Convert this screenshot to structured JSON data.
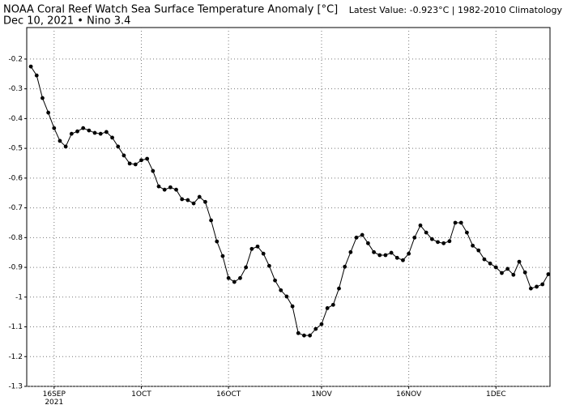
{
  "chart_data": {
    "type": "line",
    "title": "NOAA Coral Reef Watch Sea Surface Temperature Anomaly [°C]",
    "subtitle": "Dec 10, 2021 • Nino 3.4",
    "annotation": "Latest Value: -0.923°C | 1982-2010 Climatology",
    "color": "#000000",
    "grid": true,
    "x": [
      "2021-09-12",
      "2021-09-13",
      "2021-09-14",
      "2021-09-15",
      "2021-09-16",
      "2021-09-17",
      "2021-09-18",
      "2021-09-19",
      "2021-09-20",
      "2021-09-21",
      "2021-09-22",
      "2021-09-23",
      "2021-09-24",
      "2021-09-25",
      "2021-09-26",
      "2021-09-27",
      "2021-09-28",
      "2021-09-29",
      "2021-09-30",
      "2021-10-01",
      "2021-10-02",
      "2021-10-03",
      "2021-10-04",
      "2021-10-05",
      "2021-10-06",
      "2021-10-07",
      "2021-10-08",
      "2021-10-09",
      "2021-10-10",
      "2021-10-11",
      "2021-10-12",
      "2021-10-13",
      "2021-10-14",
      "2021-10-15",
      "2021-10-16",
      "2021-10-17",
      "2021-10-18",
      "2021-10-19",
      "2021-10-20",
      "2021-10-21",
      "2021-10-22",
      "2021-10-23",
      "2021-10-24",
      "2021-10-25",
      "2021-10-26",
      "2021-10-27",
      "2021-10-28",
      "2021-10-29",
      "2021-10-30",
      "2021-10-31",
      "2021-11-01",
      "2021-11-02",
      "2021-11-03",
      "2021-11-04",
      "2021-11-05",
      "2021-11-06",
      "2021-11-07",
      "2021-11-08",
      "2021-11-09",
      "2021-11-10",
      "2021-11-11",
      "2021-11-12",
      "2021-11-13",
      "2021-11-14",
      "2021-11-15",
      "2021-11-16",
      "2021-11-17",
      "2021-11-18",
      "2021-11-19",
      "2021-11-20",
      "2021-11-21",
      "2021-11-22",
      "2021-11-23",
      "2021-11-24",
      "2021-11-25",
      "2021-11-26",
      "2021-11-27",
      "2021-11-28",
      "2021-11-29",
      "2021-11-30",
      "2021-12-01",
      "2021-12-02",
      "2021-12-03",
      "2021-12-04",
      "2021-12-05",
      "2021-12-06",
      "2021-12-07",
      "2021-12-08",
      "2021-12-09",
      "2021-12-10"
    ],
    "values": [
      -0.225,
      -0.255,
      -0.331,
      -0.38,
      -0.432,
      -0.475,
      -0.494,
      -0.451,
      -0.443,
      -0.432,
      -0.44,
      -0.448,
      -0.451,
      -0.445,
      -0.464,
      -0.494,
      -0.524,
      -0.551,
      -0.554,
      -0.54,
      -0.535,
      -0.576,
      -0.628,
      -0.639,
      -0.631,
      -0.639,
      -0.671,
      -0.674,
      -0.685,
      -0.663,
      -0.68,
      -0.742,
      -0.813,
      -0.862,
      -0.936,
      -0.949,
      -0.936,
      -0.9,
      -0.838,
      -0.83,
      -0.854,
      -0.895,
      -0.944,
      -0.977,
      -0.998,
      -1.031,
      -1.121,
      -1.129,
      -1.129,
      -1.107,
      -1.091,
      -1.037,
      -1.026,
      -0.971,
      -0.898,
      -0.849,
      -0.8,
      -0.791,
      -0.819,
      -0.849,
      -0.859,
      -0.859,
      -0.851,
      -0.868,
      -0.876,
      -0.854,
      -0.8,
      -0.759,
      -0.783,
      -0.805,
      -0.815,
      -0.819,
      -0.812,
      -0.75,
      -0.75,
      -0.783,
      -0.827,
      -0.843,
      -0.873,
      -0.887,
      -0.9,
      -0.919,
      -0.905,
      -0.925,
      -0.881,
      -0.917,
      -0.971,
      -0.965,
      -0.957,
      -0.923
    ],
    "xlim": [
      "2021-09-11T07:00",
      "2021-12-10T07:00"
    ],
    "xticks": [
      {
        "value": "2021-09-16",
        "label": "16SEP\n2021"
      },
      {
        "value": "2021-10-01",
        "label": "1OCT"
      },
      {
        "value": "2021-10-16",
        "label": "16OCT"
      },
      {
        "value": "2021-11-01",
        "label": "1NOV"
      },
      {
        "value": "2021-11-16",
        "label": "16NOV"
      },
      {
        "value": "2021-12-01",
        "label": "1DEC"
      }
    ],
    "ylim": [
      -1.3,
      -0.094
    ],
    "yticks": [
      -0.2,
      -0.3,
      -0.4,
      -0.5,
      -0.6,
      -0.7,
      -0.8,
      -0.9,
      -1,
      -1.1,
      -1.2,
      -1.3
    ]
  }
}
